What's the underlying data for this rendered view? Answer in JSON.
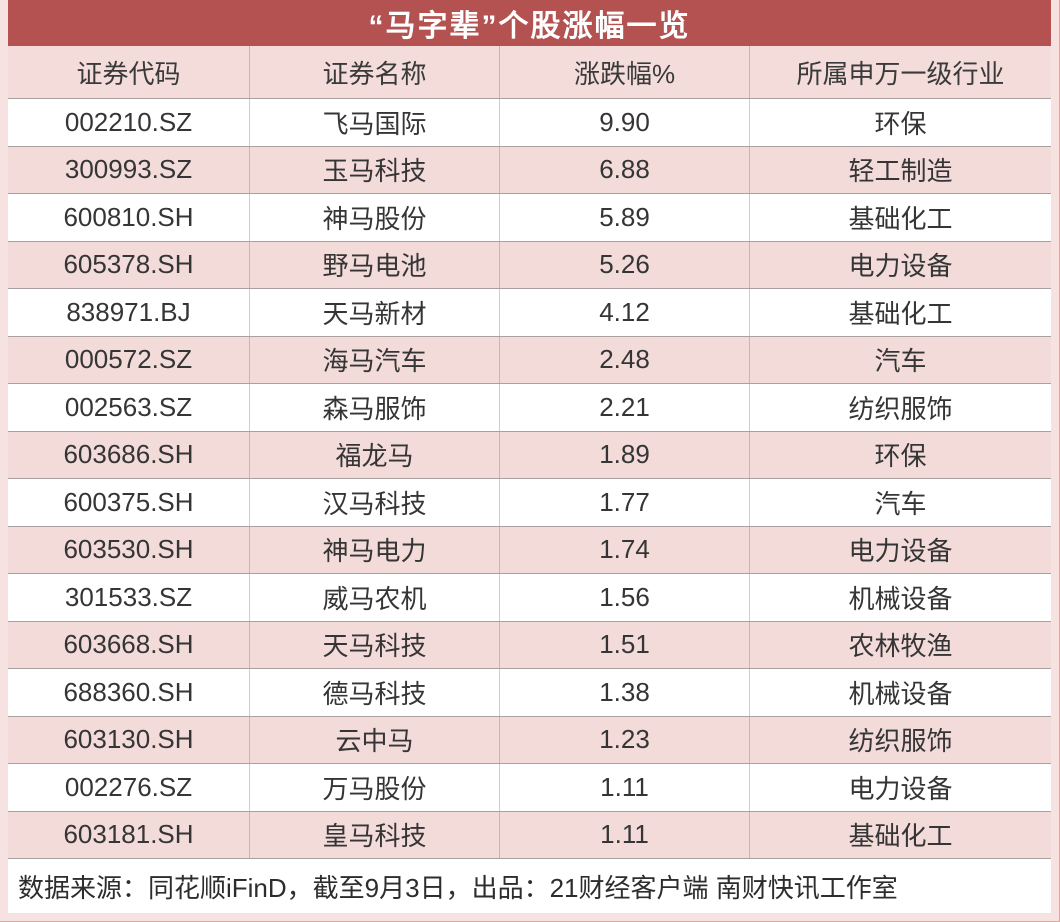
{
  "title": "“马字辈”个股涨幅一览",
  "footer_note": "数据来源：同花顺iFinD，截至9月3日，出品：21财经客户端 南财快讯工作室",
  "colors": {
    "title_bar_red": "#B35250",
    "header_row_pink": "#F3DCDA",
    "stripe_pink": "#F2DBD9",
    "frame_pink": "#F6E2E0",
    "text_dark": "#353535"
  },
  "chart_data": {
    "type": "table",
    "title": "“马字辈”个股涨幅一览",
    "columns": [
      "证券代码",
      "证券名称",
      "涨跌幅%",
      "所属申万一级行业"
    ],
    "rows": [
      [
        "002210.SZ",
        "飞马国际",
        "9.90",
        "环保"
      ],
      [
        "300993.SZ",
        "玉马科技",
        "6.88",
        "轻工制造"
      ],
      [
        "600810.SH",
        "神马股份",
        "5.89",
        "基础化工"
      ],
      [
        "605378.SH",
        "野马电池",
        "5.26",
        "电力设备"
      ],
      [
        "838971.BJ",
        "天马新材",
        "4.12",
        "基础化工"
      ],
      [
        "000572.SZ",
        "海马汽车",
        "2.48",
        "汽车"
      ],
      [
        "002563.SZ",
        "森马服饰",
        "2.21",
        "纺织服饰"
      ],
      [
        "603686.SH",
        "福龙马",
        "1.89",
        "环保"
      ],
      [
        "600375.SH",
        "汉马科技",
        "1.77",
        "汽车"
      ],
      [
        "603530.SH",
        "神马电力",
        "1.74",
        "电力设备"
      ],
      [
        "301533.SZ",
        "威马农机",
        "1.56",
        "机械设备"
      ],
      [
        "603668.SH",
        "天马科技",
        "1.51",
        "农林牧渔"
      ],
      [
        "688360.SH",
        "德马科技",
        "1.38",
        "机械设备"
      ],
      [
        "603130.SH",
        "云中马",
        "1.23",
        "纺织服饰"
      ],
      [
        "002276.SZ",
        "万马股份",
        "1.11",
        "电力设备"
      ],
      [
        "603181.SH",
        "皇马科技",
        "1.11",
        "基础化工"
      ]
    ]
  }
}
